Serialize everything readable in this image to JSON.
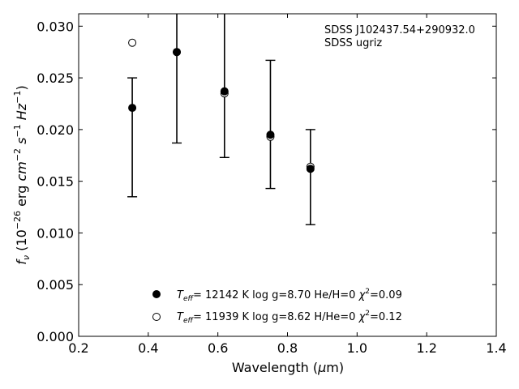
{
  "chart_data": {
    "type": "scatter",
    "xlabel": "Wavelength (μm)",
    "ylabel": "f_ν (10^-26 erg cm^-2 s^-1 Hz^-1)",
    "xlim": [
      0.2,
      1.4
    ],
    "ylim": [
      0.0,
      0.0312
    ],
    "xticks": [
      0.2,
      0.4,
      0.6,
      0.8,
      1.0,
      1.2,
      1.4
    ],
    "yticks": [
      0.0,
      0.005,
      0.01,
      0.015,
      0.02,
      0.025,
      0.03
    ],
    "xtick_labels": [
      "0.2",
      "0.4",
      "0.6",
      "0.8",
      "1.0",
      "1.2",
      "1.4"
    ],
    "ytick_labels": [
      "0.000",
      "0.005",
      "0.010",
      "0.015",
      "0.020",
      "0.025",
      "0.030"
    ],
    "annotation_lines": [
      "SDSS J102437.54+290932.0",
      "SDSS ugriz"
    ],
    "observed": {
      "x": [
        0.354,
        0.482,
        0.619,
        0.751,
        0.866
      ],
      "y": [
        0.0221,
        0.0275,
        0.0237,
        0.0195,
        0.0162
      ],
      "yerr_low": [
        0.0135,
        0.0187,
        0.0173,
        0.0143,
        0.0108
      ],
      "yerr_high": [
        0.025,
        0.034,
        0.034,
        0.0267,
        0.02
      ]
    },
    "series": [
      {
        "marker": "filled-circle",
        "x": [
          0.354,
          0.482,
          0.619,
          0.751,
          0.866
        ],
        "y": [
          0.0221,
          0.0275,
          0.0237,
          0.0195,
          0.0162
        ],
        "legend_parts": {
          "teff": "= 12142 K  log g=8.70  He/H=0  ",
          "chi2": "=0.09"
        }
      },
      {
        "marker": "open-circle",
        "x": [
          0.354,
          0.482,
          0.619,
          0.751,
          0.866
        ],
        "y": [
          0.0284,
          0.0275,
          0.0235,
          0.0193,
          0.0164
        ],
        "legend_parts": {
          "teff": "= 11939 K  log g=8.62  H/He=0  ",
          "chi2": "=0.12"
        }
      }
    ],
    "legend_placement": "lower-center",
    "grid": false
  }
}
